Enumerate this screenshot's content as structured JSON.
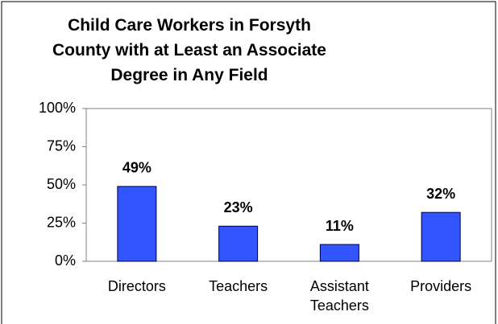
{
  "chart_data": {
    "type": "bar",
    "title": "Child Care Workers in Forsyth County with at Least an Associate Degree in Any Field",
    "categories": [
      "Directors",
      "Teachers",
      "Assistant Teachers",
      "Providers"
    ],
    "values": [
      49,
      23,
      11,
      32
    ],
    "value_labels": [
      "49%",
      "23%",
      "11%",
      "32%"
    ],
    "color": "#3355ff",
    "ylim": [
      0,
      100
    ],
    "yticks": [
      {
        "value": 0,
        "label": "0%"
      },
      {
        "value": 25,
        "label": "25%"
      },
      {
        "value": 50,
        "label": "50%"
      },
      {
        "value": 75,
        "label": "75%"
      },
      {
        "value": 100,
        "label": "100%"
      }
    ],
    "grid": false
  }
}
